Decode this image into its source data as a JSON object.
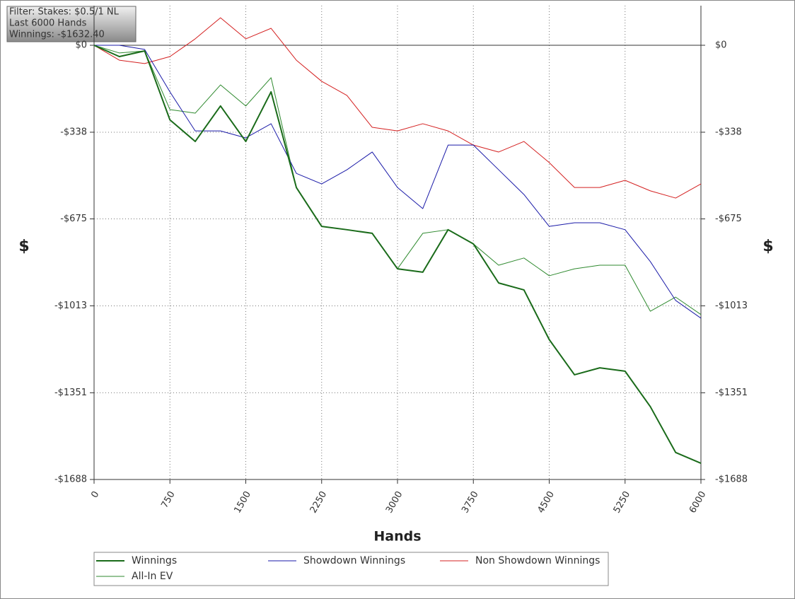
{
  "chart_data": {
    "type": "line",
    "info_lines": [
      "Filter: Stakes: $0.5/1 NL",
      "Last 6000 Hands",
      "Winnings: -$1632.40"
    ],
    "x_label": "Hands",
    "y_label": "$",
    "y2_label": "$",
    "x": [
      0,
      250,
      500,
      750,
      1000,
      1250,
      1500,
      1750,
      2000,
      2250,
      2500,
      2750,
      3000,
      3250,
      3500,
      3750,
      4000,
      4250,
      4500,
      4750,
      5000,
      5250,
      5500,
      5750,
      6000
    ],
    "series": [
      {
        "name": "Winnings",
        "color": "#1a6b1a",
        "width": 2,
        "values": [
          0,
          -44,
          -22,
          -290,
          -374,
          -236,
          -374,
          -181,
          -553,
          -704,
          -717,
          -731,
          -869,
          -882,
          -717,
          -772,
          -924,
          -951,
          -1144,
          -1281,
          -1254,
          -1267,
          -1405,
          -1583,
          -1625
        ]
      },
      {
        "name": "Showdown Winnings",
        "color": "#1a1aa8",
        "width": 1,
        "values": [
          0,
          0,
          -16,
          -181,
          -333,
          -333,
          -360,
          -305,
          -498,
          -539,
          -484,
          -415,
          -553,
          -635,
          -388,
          -388,
          -484,
          -580,
          -704,
          -690,
          -690,
          -717,
          -841,
          -992,
          -1061
        ]
      },
      {
        "name": "Non Showdown Winnings",
        "color": "#d42020",
        "width": 1,
        "values": [
          0,
          -58,
          -71,
          -44,
          25,
          107,
          25,
          66,
          -58,
          -140,
          -195,
          -319,
          -333,
          -305,
          -333,
          -388,
          -415,
          -374,
          -456,
          -553,
          -553,
          -525,
          -566,
          -594,
          -539
        ]
      },
      {
        "name": "All-In EV",
        "color": "#2f8a2f",
        "width": 1,
        "values": [
          0,
          -30,
          -22,
          -250,
          -264,
          -154,
          -236,
          -126,
          -553,
          -704,
          -717,
          -731,
          -869,
          -731,
          -717,
          -772,
          -855,
          -827,
          -896,
          -869,
          -855,
          -855,
          -1034,
          -979,
          -1047
        ]
      }
    ],
    "xlim": [
      0,
      6000
    ],
    "xticks": [
      0,
      750,
      1500,
      2250,
      3000,
      3750,
      4500,
      5250,
      6000
    ],
    "ylim": [
      -1688,
      154
    ],
    "yticks": [
      {
        "value": 0,
        "label": "$0"
      },
      {
        "value": -338,
        "label": "-$338"
      },
      {
        "value": -675,
        "label": "-$675"
      },
      {
        "value": -1013,
        "label": "-$1013"
      },
      {
        "value": -1351,
        "label": "-$1351"
      },
      {
        "value": -1688,
        "label": "-$1688"
      }
    ],
    "grid": true
  }
}
